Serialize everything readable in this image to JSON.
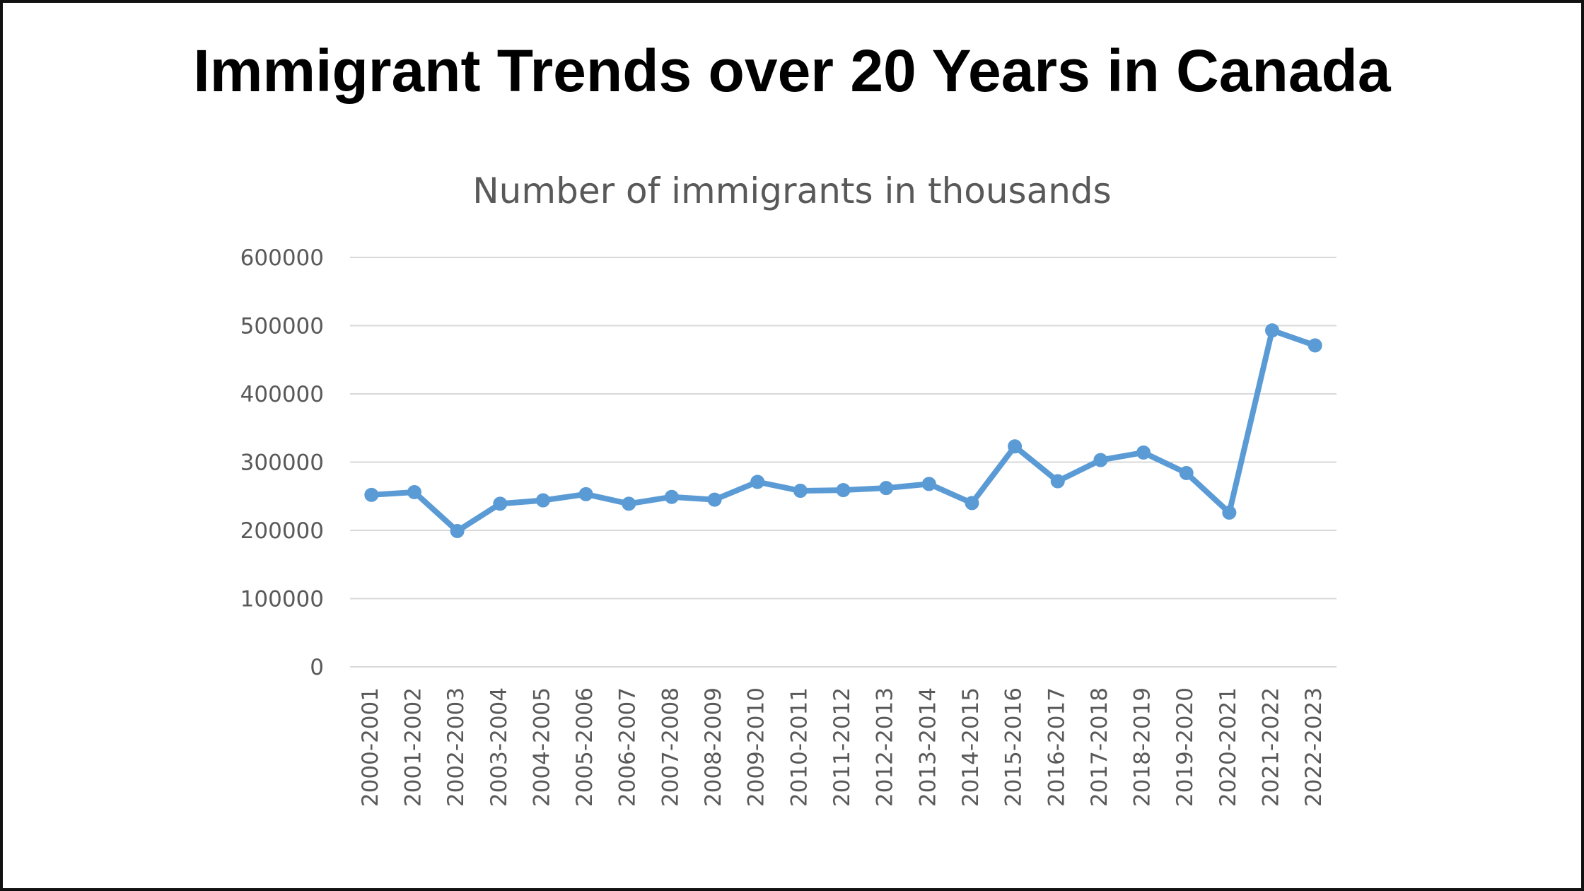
{
  "page": {
    "title": "Immigrant Trends over 20 Years in Canada"
  },
  "colors": {
    "series": "#5b9bd5",
    "grid": "#d9d9d9",
    "text": "#595959",
    "frame": "#111111"
  },
  "chart_data": {
    "type": "line",
    "title": "Number of immigrants in thousands",
    "xlabel": "",
    "ylabel": "",
    "ylim": [
      0,
      600000
    ],
    "yticks": [
      0,
      100000,
      200000,
      300000,
      400000,
      500000,
      600000
    ],
    "grid": true,
    "legend": "none",
    "categories": [
      "2000-2001",
      "2001-2002",
      "2002-2003",
      "2003-2004",
      "2004-2005",
      "2005-2006",
      "2006-2007",
      "2007-2008",
      "2008-2009",
      "2009-2010",
      "2010-2011",
      "2011-2012",
      "2012-2013",
      "2013-2014",
      "2014-2015",
      "2015-2016",
      "2016-2017",
      "2017-2018",
      "2018-2019",
      "2019-2020",
      "2020-2021",
      "2021-2022",
      "2022-2023"
    ],
    "series": [
      {
        "name": "Number of immigrants",
        "values": [
          252000,
          256000,
          199000,
          239000,
          244000,
          253000,
          239000,
          249000,
          245000,
          271000,
          258000,
          259000,
          262000,
          268000,
          240000,
          323000,
          272000,
          303000,
          314000,
          284000,
          226000,
          493000,
          471000
        ]
      }
    ]
  }
}
